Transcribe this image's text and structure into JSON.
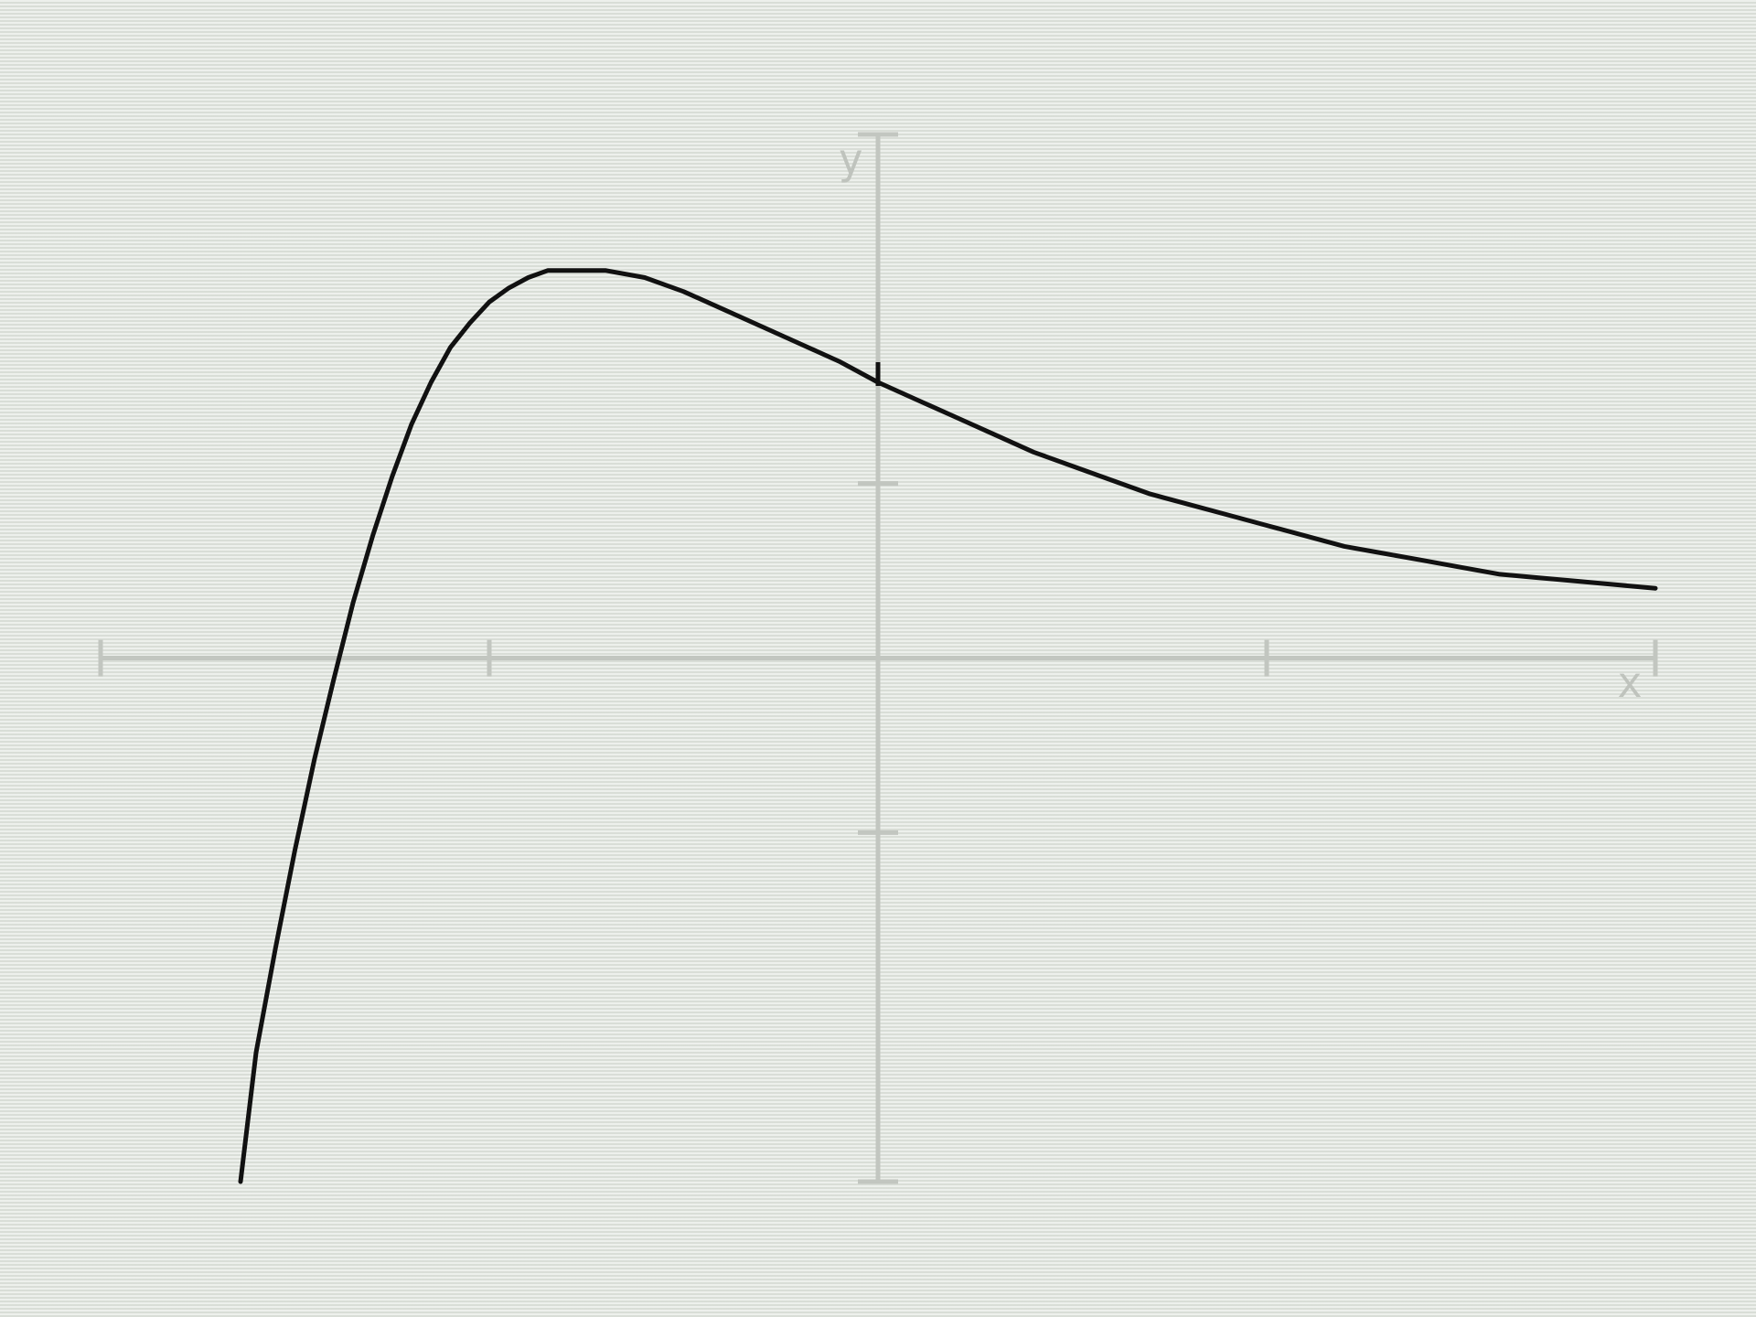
{
  "chart_data": {
    "type": "line",
    "xlabel": "x",
    "ylabel": "y",
    "xlim": [
      -2,
      2
    ],
    "ylim": [
      -1.5,
      1.5
    ],
    "x_ticks": [
      -2,
      -1,
      0,
      1,
      2
    ],
    "y_ticks": [
      -1.5,
      -0.5,
      0.5,
      1.5
    ],
    "grid": false,
    "series": [
      {
        "color": "#111111",
        "x": [
          -1.64,
          -1.6,
          -1.55,
          -1.5,
          -1.45,
          -1.4,
          -1.35,
          -1.3,
          -1.25,
          -1.2,
          -1.15,
          -1.1,
          -1.05,
          -1.0,
          -0.95,
          -0.9,
          -0.85,
          -0.8,
          -0.7,
          -0.6,
          -0.5,
          -0.4,
          -0.3,
          -0.2,
          -0.1,
          0.0,
          0.1,
          0.2,
          0.3,
          0.4,
          0.5,
          0.6,
          0.7,
          0.8,
          0.9,
          1.0,
          1.1,
          1.2,
          1.3,
          1.4,
          1.5,
          1.6,
          1.7,
          1.8,
          1.9,
          2.0
        ],
        "y": [
          -1.5,
          -1.13,
          -0.83,
          -0.55,
          -0.29,
          -0.06,
          0.16,
          0.35,
          0.52,
          0.67,
          0.79,
          0.89,
          0.96,
          1.02,
          1.06,
          1.09,
          1.11,
          1.11,
          1.11,
          1.09,
          1.05,
          1.0,
          0.95,
          0.9,
          0.85,
          0.79,
          0.74,
          0.69,
          0.64,
          0.59,
          0.55,
          0.51,
          0.47,
          0.44,
          0.41,
          0.38,
          0.35,
          0.32,
          0.3,
          0.28,
          0.26,
          0.24,
          0.23,
          0.22,
          0.21,
          0.2
        ]
      }
    ],
    "axis_color": "#c2c6c0"
  }
}
